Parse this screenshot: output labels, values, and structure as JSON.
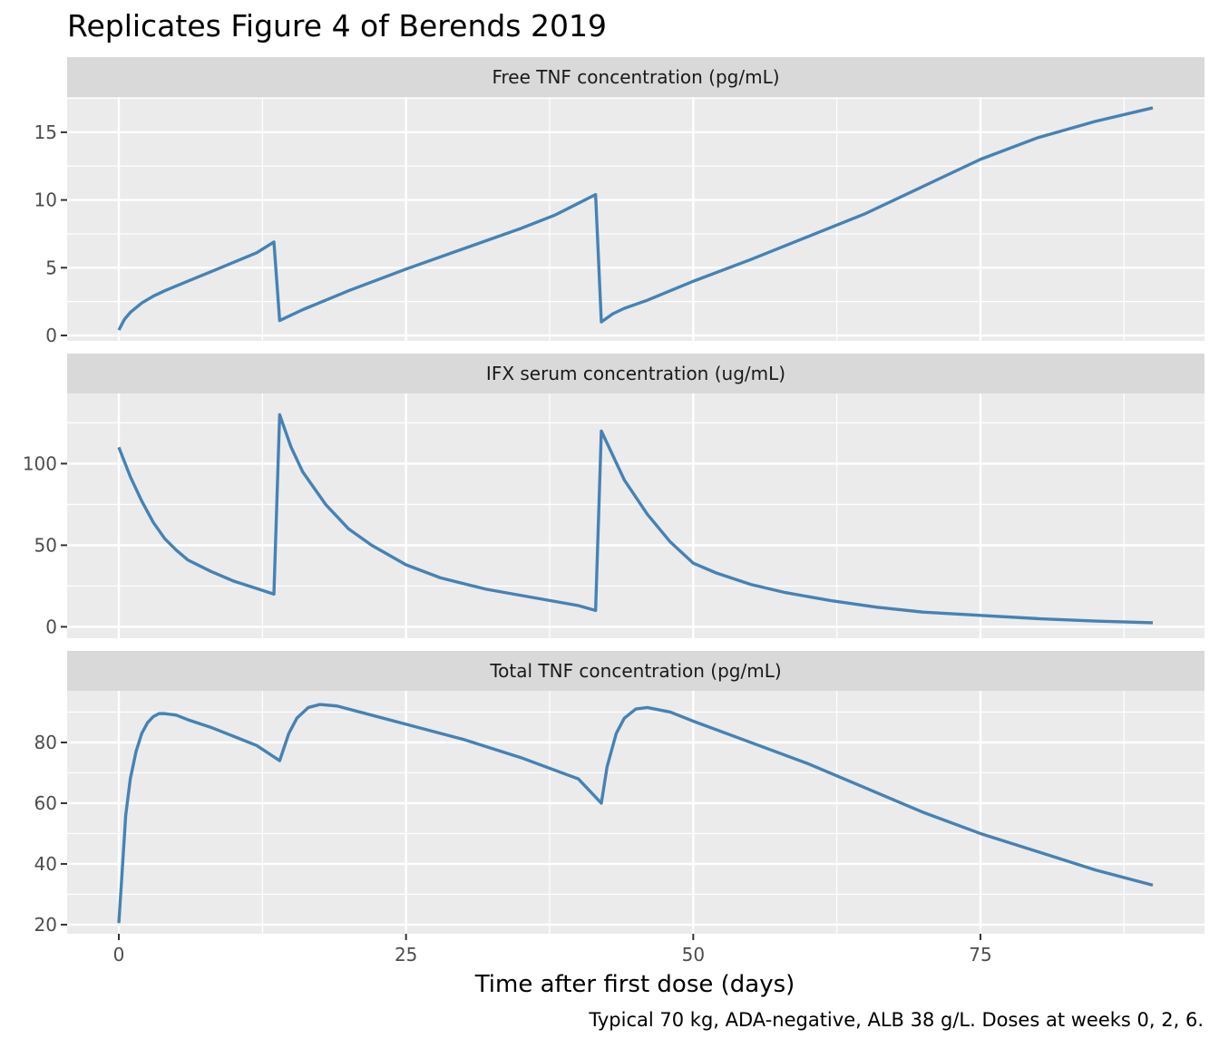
{
  "chart_data": {
    "type": "line",
    "title": "Replicates Figure 4 of Berends 2019",
    "xlabel": "Time after first dose (days)",
    "caption": "Typical 70 kg, ADA-negative, ALB 38 g/L. Doses at weeks 0, 2, 6.",
    "line_color": "#4682b4",
    "panel_bg": "#ebebeb",
    "strip_bg": "#d9d9d9",
    "grid": true,
    "xlim": [
      -4.5,
      94.5
    ],
    "x_ticks": [
      0,
      25,
      50,
      75
    ],
    "x_tick_labels": [
      "0",
      "25",
      "50",
      "75"
    ],
    "panels": [
      {
        "label": "Free TNF concentration (pg/mL)",
        "ylim": [
          -0.4,
          17.6
        ],
        "y_ticks": [
          0,
          5,
          10,
          15
        ],
        "y_tick_labels": [
          "0",
          "5",
          "10",
          "15"
        ],
        "points": [
          [
            0,
            0.4
          ],
          [
            0.5,
            1.2
          ],
          [
            1,
            1.7
          ],
          [
            2,
            2.4
          ],
          [
            3,
            2.9
          ],
          [
            4,
            3.3
          ],
          [
            6,
            4.0
          ],
          [
            8,
            4.7
          ],
          [
            10,
            5.4
          ],
          [
            12,
            6.1
          ],
          [
            13.5,
            6.9
          ],
          [
            14,
            1.1
          ],
          [
            16,
            1.9
          ],
          [
            18,
            2.6
          ],
          [
            20,
            3.3
          ],
          [
            25,
            4.9
          ],
          [
            30,
            6.4
          ],
          [
            35,
            7.9
          ],
          [
            38,
            8.9
          ],
          [
            41.5,
            10.4
          ],
          [
            42,
            1.0
          ],
          [
            43,
            1.6
          ],
          [
            44,
            2.0
          ],
          [
            46,
            2.6
          ],
          [
            48,
            3.3
          ],
          [
            50,
            4.0
          ],
          [
            55,
            5.6
          ],
          [
            60,
            7.3
          ],
          [
            65,
            9.0
          ],
          [
            70,
            11.0
          ],
          [
            75,
            13.0
          ],
          [
            80,
            14.6
          ],
          [
            85,
            15.8
          ],
          [
            90,
            16.8
          ]
        ]
      },
      {
        "label": "IFX serum concentration (ug/mL)",
        "ylim": [
          -7,
          143
        ],
        "y_ticks": [
          0,
          50,
          100
        ],
        "y_tick_labels": [
          "0",
          "50",
          "100"
        ],
        "points": [
          [
            0,
            110
          ],
          [
            1,
            92
          ],
          [
            2,
            77
          ],
          [
            3,
            64
          ],
          [
            4,
            54
          ],
          [
            5,
            47
          ],
          [
            6,
            41
          ],
          [
            8,
            34
          ],
          [
            10,
            28
          ],
          [
            12,
            23.5
          ],
          [
            13.5,
            20
          ],
          [
            14,
            130
          ],
          [
            15,
            110
          ],
          [
            16,
            95
          ],
          [
            18,
            75
          ],
          [
            20,
            60
          ],
          [
            22,
            50
          ],
          [
            25,
            38
          ],
          [
            28,
            30
          ],
          [
            32,
            23
          ],
          [
            36,
            18
          ],
          [
            40,
            13
          ],
          [
            41.5,
            10
          ],
          [
            42,
            120
          ],
          [
            43,
            105
          ],
          [
            44,
            90
          ],
          [
            46,
            69
          ],
          [
            48,
            52
          ],
          [
            50,
            39
          ],
          [
            52,
            33
          ],
          [
            55,
            26
          ],
          [
            58,
            21
          ],
          [
            62,
            16
          ],
          [
            66,
            12
          ],
          [
            70,
            9
          ],
          [
            75,
            7
          ],
          [
            80,
            5
          ],
          [
            85,
            3.5
          ],
          [
            90,
            2.5
          ]
        ]
      },
      {
        "label": "Total TNF concentration (pg/mL)",
        "ylim": [
          17,
          97
        ],
        "y_ticks": [
          20,
          40,
          60,
          80
        ],
        "y_tick_labels": [
          "20",
          "40",
          "60",
          "80"
        ],
        "points": [
          [
            0,
            20.5
          ],
          [
            0.3,
            38
          ],
          [
            0.6,
            56
          ],
          [
            1,
            68
          ],
          [
            1.5,
            77
          ],
          [
            2,
            83
          ],
          [
            2.5,
            86.5
          ],
          [
            3,
            88.5
          ],
          [
            3.5,
            89.5
          ],
          [
            4,
            89.5
          ],
          [
            5,
            89
          ],
          [
            6,
            87.5
          ],
          [
            8,
            85
          ],
          [
            10,
            82
          ],
          [
            12,
            79
          ],
          [
            14,
            74
          ],
          [
            14.8,
            83
          ],
          [
            15.5,
            88
          ],
          [
            16.5,
            91.5
          ],
          [
            17.5,
            92.5
          ],
          [
            19,
            92
          ],
          [
            22,
            89
          ],
          [
            25,
            86
          ],
          [
            30,
            81
          ],
          [
            35,
            75
          ],
          [
            40,
            68
          ],
          [
            42,
            60
          ],
          [
            42.5,
            72
          ],
          [
            43.3,
            83
          ],
          [
            44,
            88
          ],
          [
            45,
            91
          ],
          [
            46,
            91.5
          ],
          [
            48,
            90
          ],
          [
            50,
            87
          ],
          [
            55,
            80
          ],
          [
            60,
            73
          ],
          [
            65,
            65
          ],
          [
            70,
            57
          ],
          [
            75,
            50
          ],
          [
            80,
            44
          ],
          [
            85,
            38
          ],
          [
            90,
            33
          ]
        ]
      }
    ]
  }
}
